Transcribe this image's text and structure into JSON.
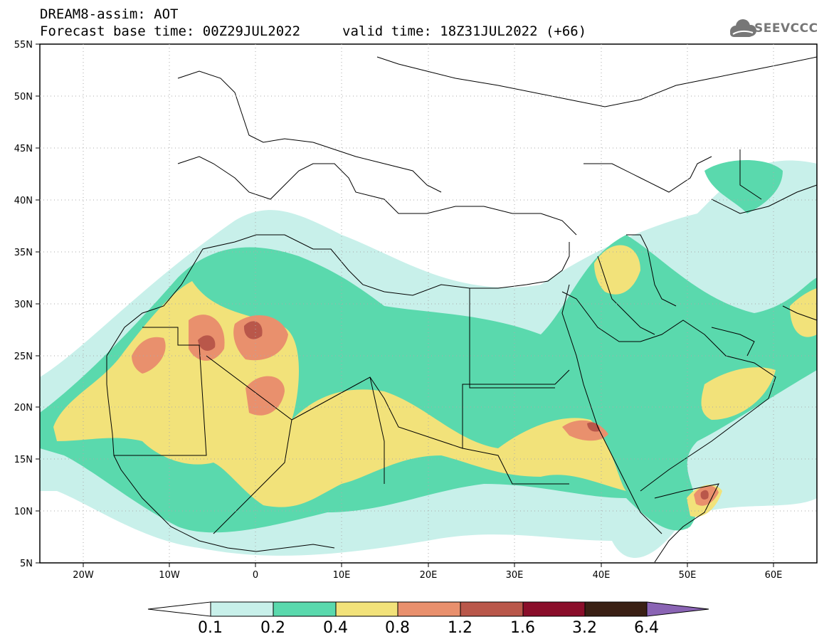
{
  "header": {
    "title": "DREAM8-assim: AOT",
    "base_time": "Forecast base time: 00Z29JUL2022",
    "valid_time": "valid time: 18Z31JUL2022 (+66)",
    "logo": "SEEVCCC"
  },
  "map": {
    "projection": "lat-lon",
    "lon_range": [
      -25,
      65
    ],
    "lat_range": [
      5,
      55
    ],
    "lat_ticks": [
      "55N",
      "50N",
      "45N",
      "40N",
      "35N",
      "30N",
      "25N",
      "20N",
      "15N",
      "10N",
      "5N"
    ],
    "lon_ticks": [
      "20W",
      "10W",
      "0",
      "10E",
      "20E",
      "30E",
      "40E",
      "50E",
      "60E"
    ],
    "variable": "aerosol optical thickness"
  },
  "colorbar": {
    "labels": [
      "0.1",
      "0.2",
      "0.4",
      "0.8",
      "1.2",
      "1.6",
      "3.2",
      "6.4"
    ],
    "colors": [
      "#c8f0ea",
      "#5ad9ad",
      "#f2e27a",
      "#e9906d",
      "#b9574a",
      "#8a0e2a",
      "#3a2014",
      "#8a64b4"
    ],
    "under_color": "#ffffff"
  }
}
